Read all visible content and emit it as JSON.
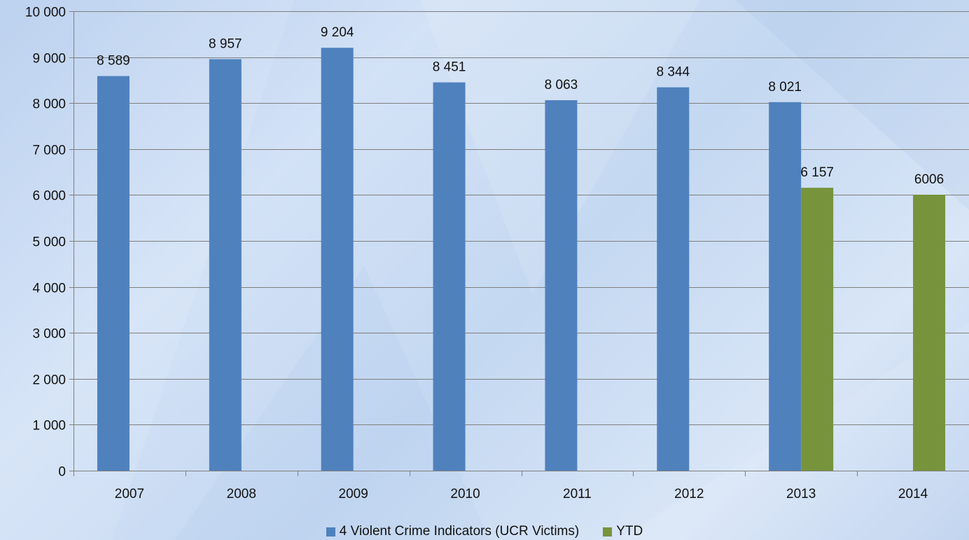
{
  "chart_data": {
    "type": "bar",
    "categories": [
      "2007",
      "2008",
      "2009",
      "2010",
      "2011",
      "2012",
      "2013",
      "2014"
    ],
    "series": [
      {
        "name": "4 Violent Crime Indicators (UCR Victims)",
        "color": "#4f81bd",
        "values": [
          8589,
          8957,
          9204,
          8451,
          8063,
          8344,
          8021,
          null
        ],
        "labels": [
          "8 589",
          "8 957",
          "9 204",
          "8 451",
          "8 063",
          "8 344",
          "8 021",
          ""
        ]
      },
      {
        "name": "YTD",
        "color": "#77933c",
        "values": [
          null,
          null,
          null,
          null,
          null,
          null,
          6157,
          6006
        ],
        "labels": [
          "",
          "",
          "",
          "",
          "",
          "",
          "6 157",
          "6006"
        ]
      }
    ],
    "ylim": [
      0,
      10000
    ],
    "yticks": [
      0,
      1000,
      2000,
      3000,
      4000,
      5000,
      6000,
      7000,
      8000,
      9000,
      10000
    ],
    "ytick_labels": [
      "0",
      "1 000",
      "2 000",
      "3 000",
      "4 000",
      "5 000",
      "6 000",
      "7 000",
      "8 000",
      "9 000",
      "10 000"
    ],
    "grid": true,
    "legend_position": "bottom",
    "title": "",
    "xlabel": "",
    "ylabel": ""
  },
  "colors": {
    "gridline": "#7f7f7f",
    "axis": "#7f7f7f"
  }
}
